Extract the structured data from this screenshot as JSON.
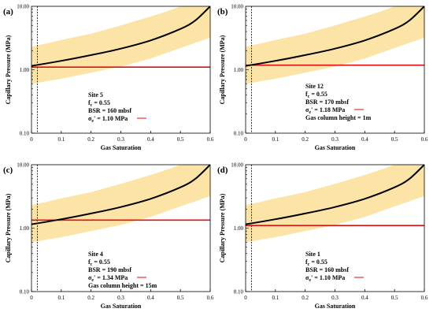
{
  "chart_data": [
    {
      "type": "line",
      "panel_label": "(a)",
      "xlabel": "Gas Saturation",
      "ylabel": "Capillary Pressure (MPa)",
      "yscale": "log",
      "xlim": [
        0,
        0.6
      ],
      "ylim": [
        0.1,
        10
      ],
      "x_ticks": [
        "0",
        "0.1",
        "0.2",
        "0.3",
        "0.4",
        "0.5",
        "0.6"
      ],
      "y_ticks": [
        "0.10",
        "1.00",
        "10.00"
      ],
      "curve": {
        "x": [
          0,
          0.1,
          0.2,
          0.3,
          0.4,
          0.5,
          0.55,
          0.6
        ],
        "y": [
          1.15,
          1.38,
          1.7,
          2.15,
          2.9,
          4.4,
          6.0,
          10.0
        ]
      },
      "band_lower": {
        "x": [
          0,
          0.1,
          0.2,
          0.3,
          0.4,
          0.5,
          0.6
        ],
        "y": [
          0.6,
          0.72,
          0.9,
          1.12,
          1.5,
          2.2,
          3.2
        ]
      },
      "band_upper": {
        "x": [
          0,
          0.05,
          0.1,
          0.2,
          0.3,
          0.4,
          0.45,
          0.5
        ],
        "y": [
          2.3,
          2.6,
          2.95,
          3.7,
          5.0,
          6.9,
          8.2,
          10.0
        ]
      },
      "seal_pressure": 1.1,
      "vline_x": 0.02,
      "annotation": [
        "Site 5",
        "fc = 0.55",
        "BSR = 160 mbsf",
        "σe' = 1.10 MPa"
      ],
      "colors": {
        "curve": "#000000",
        "band": "#fce4a6",
        "pressure_line": "#dd1111"
      }
    },
    {
      "type": "line",
      "panel_label": "(b)",
      "xlabel": "Gas Saturation",
      "ylabel": "Capillary Pressure (MPa)",
      "yscale": "log",
      "xlim": [
        0,
        0.6
      ],
      "ylim": [
        0.1,
        10
      ],
      "x_ticks": [
        "0",
        "0.1",
        "0.2",
        "0.3",
        "0.4",
        "0.5",
        "0.6"
      ],
      "y_ticks": [
        "0.10",
        "1.00",
        "10.00"
      ],
      "curve": {
        "x": [
          0,
          0.1,
          0.2,
          0.3,
          0.4,
          0.5,
          0.55,
          0.6
        ],
        "y": [
          1.15,
          1.38,
          1.7,
          2.15,
          2.9,
          4.4,
          6.0,
          10.0
        ]
      },
      "band_lower": {
        "x": [
          0,
          0.1,
          0.2,
          0.3,
          0.4,
          0.5,
          0.6
        ],
        "y": [
          0.6,
          0.72,
          0.9,
          1.12,
          1.5,
          2.2,
          3.2
        ]
      },
      "band_upper": {
        "x": [
          0,
          0.05,
          0.1,
          0.2,
          0.3,
          0.4,
          0.45,
          0.5
        ],
        "y": [
          2.3,
          2.6,
          2.95,
          3.7,
          5.0,
          6.9,
          8.2,
          10.0
        ]
      },
      "seal_pressure": 1.18,
      "vline_x": 0.02,
      "annotation": [
        "Site 12",
        "fc = 0.55",
        "BSR = 170 mbsf",
        "σe' = 1.18 MPa",
        "Gas column height = 1m"
      ],
      "colors": {
        "curve": "#000000",
        "band": "#fce4a6",
        "pressure_line": "#dd1111"
      }
    },
    {
      "type": "line",
      "panel_label": "(c)",
      "xlabel": "Gas Saturation",
      "ylabel": "Capillary Pressure (MPa)",
      "yscale": "log",
      "xlim": [
        0,
        0.6
      ],
      "ylim": [
        0.1,
        10
      ],
      "x_ticks": [
        "0",
        "0.1",
        "0.2",
        "0.3",
        "0.4",
        "0.5",
        "0.6"
      ],
      "y_ticks": [
        "0.10",
        "1.00",
        "10.00"
      ],
      "curve": {
        "x": [
          0,
          0.1,
          0.2,
          0.3,
          0.4,
          0.5,
          0.55,
          0.6
        ],
        "y": [
          1.15,
          1.38,
          1.7,
          2.15,
          2.9,
          4.4,
          6.0,
          10.0
        ]
      },
      "band_lower": {
        "x": [
          0,
          0.1,
          0.2,
          0.3,
          0.4,
          0.5,
          0.6
        ],
        "y": [
          0.6,
          0.72,
          0.9,
          1.12,
          1.5,
          2.2,
          3.2
        ]
      },
      "band_upper": {
        "x": [
          0,
          0.05,
          0.1,
          0.2,
          0.3,
          0.4,
          0.45,
          0.5
        ],
        "y": [
          2.3,
          2.6,
          2.95,
          3.7,
          5.0,
          6.9,
          8.2,
          10.0
        ]
      },
      "seal_pressure": 1.34,
      "vline_x": 0.02,
      "annotation": [
        "Site 4",
        "fc = 0.55",
        "BSR = 190 mbsf",
        "σe' = 1.34 MPa",
        "Gas column height = 15m"
      ],
      "colors": {
        "curve": "#000000",
        "band": "#fce4a6",
        "pressure_line": "#dd1111"
      }
    },
    {
      "type": "line",
      "panel_label": "(d)",
      "xlabel": "Gas Saturation",
      "ylabel": "Capillary Pressure (MPa)",
      "yscale": "log",
      "xlim": [
        0,
        0.6
      ],
      "ylim": [
        0.1,
        10
      ],
      "x_ticks": [
        "0",
        "0.1",
        "0.2",
        "0.3",
        "0.4",
        "0.5",
        "0.6"
      ],
      "y_ticks": [
        "0.10",
        "1.00",
        "10.00"
      ],
      "curve": {
        "x": [
          0,
          0.1,
          0.2,
          0.3,
          0.4,
          0.5,
          0.55,
          0.6
        ],
        "y": [
          1.15,
          1.38,
          1.7,
          2.15,
          2.9,
          4.4,
          6.0,
          10.0
        ]
      },
      "band_lower": {
        "x": [
          0,
          0.1,
          0.2,
          0.3,
          0.4,
          0.5,
          0.6
        ],
        "y": [
          0.6,
          0.72,
          0.9,
          1.12,
          1.5,
          2.2,
          3.2
        ]
      },
      "band_upper": {
        "x": [
          0,
          0.05,
          0.1,
          0.2,
          0.3,
          0.4,
          0.45,
          0.5
        ],
        "y": [
          2.3,
          2.6,
          2.95,
          3.7,
          5.0,
          6.9,
          8.2,
          10.0
        ]
      },
      "seal_pressure": 1.1,
      "vline_x": 0.02,
      "annotation": [
        "Site 1",
        "fc = 0.55",
        "BSR = 160 mbsf",
        "σe' = 1.10 MPa"
      ],
      "colors": {
        "curve": "#000000",
        "band": "#fce4a6",
        "pressure_line": "#dd1111"
      }
    }
  ]
}
